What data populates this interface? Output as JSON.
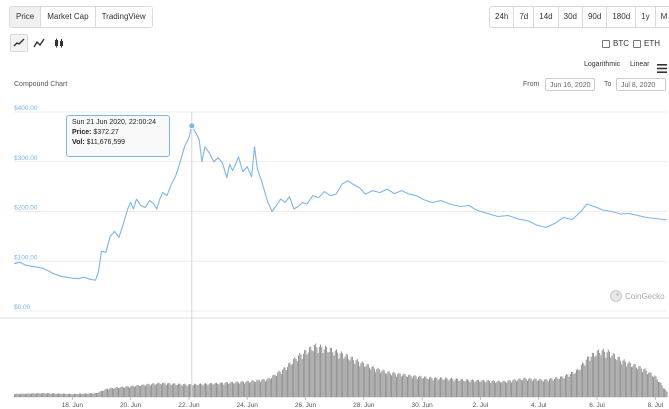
{
  "tabs": [
    {
      "label": "Price",
      "active": true
    },
    {
      "label": "Market Cap",
      "active": false
    },
    {
      "label": "TradingView",
      "active": false
    }
  ],
  "ranges": [
    "24h",
    "7d",
    "14d",
    "30d",
    "90d",
    "180d",
    "1y",
    "M"
  ],
  "chart_types": [
    "line-icon",
    "area-icon",
    "candlestick-icon"
  ],
  "compare": {
    "btc": "BTC",
    "eth": "ETH"
  },
  "scale": {
    "log": "Logarithmic",
    "linear": "Linear"
  },
  "menu_icon": "hamburger-icon",
  "chart_title": "Compound Chart",
  "date_range": {
    "from_label": "From",
    "from": "Jun 16, 2020",
    "to_label": "To",
    "to": "Jul 8, 2020"
  },
  "tooltip": {
    "date": "Sun 21 Jun 2020, 22:00:24",
    "price_label": "Price:",
    "price": "$372.27",
    "vol_label": "Vol:",
    "vol": "$11,676,599"
  },
  "watermark": "CoinGecko",
  "colors": {
    "line": "#7cb5ec",
    "volume": "#8a8a8a",
    "grid": "#e6e6e6",
    "tick": "#7cb5ec"
  },
  "chart_data": {
    "type": "line",
    "title": "",
    "x_unit": "day offset from Jun 16, 2020",
    "xticks": [
      {
        "day": 2,
        "label": "18. Jun"
      },
      {
        "day": 4,
        "label": "20. Jun"
      },
      {
        "day": 6,
        "label": "22. Jun"
      },
      {
        "day": 8,
        "label": "24. Jun"
      },
      {
        "day": 10,
        "label": "26. Jun"
      },
      {
        "day": 12,
        "label": "28. Jun"
      },
      {
        "day": 14,
        "label": "30. Jun"
      },
      {
        "day": 16,
        "label": "2. Jul"
      },
      {
        "day": 18,
        "label": "4. Jul"
      },
      {
        "day": 20,
        "label": "6. Jul"
      },
      {
        "day": 22,
        "label": "8. Jul"
      }
    ],
    "yticks": [
      {
        "value": 0,
        "label": "$0.00"
      },
      {
        "value": 100,
        "label": "$100.00"
      },
      {
        "value": 200,
        "label": "$200.00"
      },
      {
        "value": 300,
        "label": "$300.00"
      },
      {
        "value": 400,
        "label": "$400.00"
      }
    ],
    "ylim": [
      0,
      400
    ],
    "xlim": [
      0,
      22.4
    ],
    "price": [
      [
        0,
        95
      ],
      [
        0.2,
        98
      ],
      [
        0.4,
        92
      ],
      [
        0.6,
        90
      ],
      [
        0.8,
        88
      ],
      [
        1.0,
        86
      ],
      [
        1.2,
        80
      ],
      [
        1.4,
        74
      ],
      [
        1.6,
        70
      ],
      [
        1.8,
        68
      ],
      [
        2.0,
        66
      ],
      [
        2.2,
        65
      ],
      [
        2.4,
        68
      ],
      [
        2.6,
        64
      ],
      [
        2.8,
        62
      ],
      [
        2.9,
        80
      ],
      [
        3.0,
        120
      ],
      [
        3.15,
        118
      ],
      [
        3.3,
        150
      ],
      [
        3.45,
        160
      ],
      [
        3.6,
        148
      ],
      [
        3.75,
        175
      ],
      [
        3.9,
        205
      ],
      [
        4.0,
        218
      ],
      [
        4.1,
        205
      ],
      [
        4.2,
        225
      ],
      [
        4.35,
        212
      ],
      [
        4.5,
        208
      ],
      [
        4.65,
        222
      ],
      [
        4.8,
        215
      ],
      [
        4.9,
        205
      ],
      [
        5.0,
        225
      ],
      [
        5.1,
        238
      ],
      [
        5.25,
        232
      ],
      [
        5.4,
        255
      ],
      [
        5.55,
        272
      ],
      [
        5.7,
        300
      ],
      [
        5.85,
        330
      ],
      [
        6.0,
        348
      ],
      [
        6.1,
        372
      ],
      [
        6.22,
        360
      ],
      [
        6.35,
        345
      ],
      [
        6.45,
        300
      ],
      [
        6.55,
        330
      ],
      [
        6.7,
        318
      ],
      [
        6.85,
        300
      ],
      [
        7.0,
        308
      ],
      [
        7.15,
        298
      ],
      [
        7.3,
        268
      ],
      [
        7.4,
        295
      ],
      [
        7.5,
        282
      ],
      [
        7.6,
        295
      ],
      [
        7.7,
        310
      ],
      [
        7.85,
        280
      ],
      [
        8.0,
        290
      ],
      [
        8.15,
        270
      ],
      [
        8.25,
        330
      ],
      [
        8.35,
        285
      ],
      [
        8.5,
        260
      ],
      [
        8.7,
        220
      ],
      [
        8.85,
        200
      ],
      [
        9.0,
        212
      ],
      [
        9.15,
        225
      ],
      [
        9.3,
        218
      ],
      [
        9.45,
        230
      ],
      [
        9.6,
        205
      ],
      [
        9.75,
        210
      ],
      [
        9.9,
        218
      ],
      [
        10.05,
        215
      ],
      [
        10.25,
        232
      ],
      [
        10.45,
        228
      ],
      [
        10.65,
        240
      ],
      [
        10.85,
        232
      ],
      [
        11.05,
        235
      ],
      [
        11.25,
        255
      ],
      [
        11.45,
        262
      ],
      [
        11.65,
        254
      ],
      [
        11.85,
        248
      ],
      [
        12.05,
        235
      ],
      [
        12.3,
        242
      ],
      [
        12.55,
        238
      ],
      [
        12.8,
        245
      ],
      [
        13.05,
        236
      ],
      [
        13.3,
        242
      ],
      [
        13.55,
        235
      ],
      [
        13.8,
        232
      ],
      [
        14.05,
        224
      ],
      [
        14.35,
        218
      ],
      [
        14.65,
        222
      ],
      [
        14.95,
        215
      ],
      [
        15.3,
        210
      ],
      [
        15.6,
        212
      ],
      [
        15.9,
        202
      ],
      [
        16.25,
        196
      ],
      [
        16.6,
        190
      ],
      [
        16.95,
        192
      ],
      [
        17.3,
        185
      ],
      [
        17.65,
        181
      ],
      [
        17.95,
        172
      ],
      [
        18.25,
        168
      ],
      [
        18.55,
        176
      ],
      [
        18.85,
        188
      ],
      [
        19.15,
        184
      ],
      [
        19.45,
        200
      ],
      [
        19.65,
        215
      ],
      [
        19.9,
        210
      ],
      [
        20.2,
        203
      ],
      [
        20.5,
        200
      ],
      [
        20.8,
        195
      ],
      [
        21.1,
        196
      ],
      [
        21.4,
        192
      ],
      [
        21.7,
        188
      ],
      [
        22.0,
        186
      ],
      [
        22.4,
        183
      ]
    ],
    "volume": [
      [
        0,
        4
      ],
      [
        1,
        5
      ],
      [
        2,
        4
      ],
      [
        2.8,
        5
      ],
      [
        3.2,
        11
      ],
      [
        4,
        14
      ],
      [
        5,
        18
      ],
      [
        6,
        16
      ],
      [
        7,
        18
      ],
      [
        8,
        20
      ],
      [
        8.7,
        23
      ],
      [
        9.3,
        38
      ],
      [
        9.7,
        52
      ],
      [
        10.3,
        66
      ],
      [
        10.8,
        62
      ],
      [
        11.3,
        55
      ],
      [
        11.8,
        46
      ],
      [
        12.3,
        38
      ],
      [
        12.8,
        32
      ],
      [
        13.5,
        28
      ],
      [
        14.2,
        25
      ],
      [
        14.8,
        24
      ],
      [
        15.5,
        22
      ],
      [
        16.2,
        21
      ],
      [
        16.8,
        20
      ],
      [
        17.5,
        24
      ],
      [
        18.2,
        22
      ],
      [
        18.8,
        26
      ],
      [
        19.3,
        34
      ],
      [
        19.7,
        52
      ],
      [
        20.1,
        60
      ],
      [
        20.4,
        58
      ],
      [
        20.8,
        48
      ],
      [
        21.2,
        42
      ],
      [
        21.6,
        36
      ],
      [
        22.0,
        26
      ],
      [
        22.4,
        6
      ]
    ],
    "volume_max": 70
  }
}
